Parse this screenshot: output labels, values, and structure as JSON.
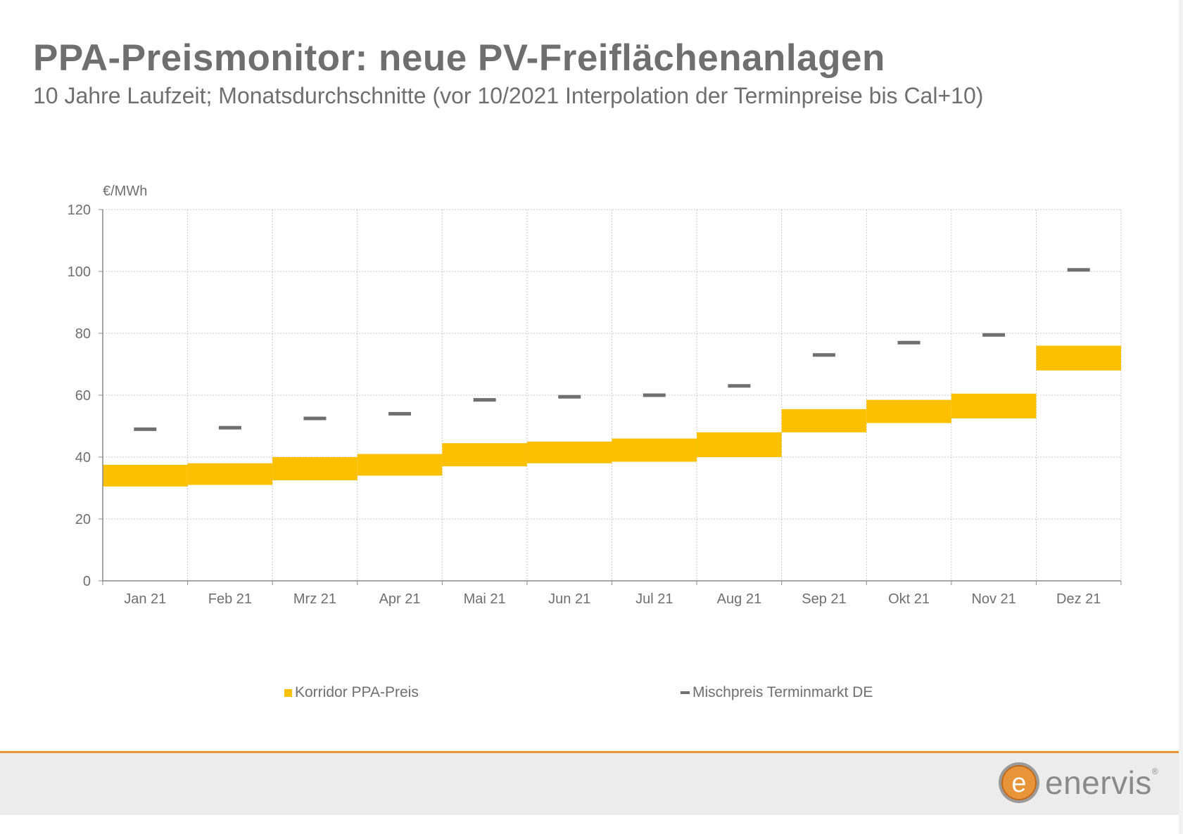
{
  "title": "PPA-Preismonitor: neue PV-Freiflächenanlagen",
  "subtitle": "10 Jahre Laufzeit; Monatsdurchschnitte (vor 10/2021 Interpolation der Terminpreise bis Cal+10)",
  "colors": {
    "corridor": "#fbc100",
    "marker": "#6f6f6f",
    "grid": "#c8c8c8",
    "text": "#6f6f6f",
    "footer_line": "#e8953a"
  },
  "logo": {
    "text": "enervis",
    "mark": "e",
    "reg": "®"
  },
  "chart_data": {
    "type": "bar",
    "ylabel": "€/MWh",
    "ylim": [
      0,
      120
    ],
    "yticks": [
      0,
      20,
      40,
      60,
      80,
      100,
      120
    ],
    "categories": [
      "Jan 21",
      "Feb 21",
      "Mrz 21",
      "Apr 21",
      "Mai 21",
      "Jun 21",
      "Jul 21",
      "Aug 21",
      "Sep 21",
      "Okt 21",
      "Nov 21",
      "Dez 21"
    ],
    "series": [
      {
        "name": "Korridor PPA-Preis",
        "kind": "range",
        "low": [
          30.5,
          31,
          32.5,
          34,
          37,
          38,
          38.5,
          40,
          48,
          51,
          52.5,
          68
        ],
        "high": [
          37.5,
          38,
          40,
          41,
          44.5,
          45,
          46,
          48,
          55.5,
          58.5,
          60.5,
          76
        ]
      },
      {
        "name": "Mischpreis Terminmarkt DE",
        "kind": "marker",
        "values": [
          49,
          49.5,
          52.5,
          54,
          58.5,
          59.5,
          60,
          63,
          73,
          77,
          79.5,
          100.5
        ]
      }
    ],
    "grid": true,
    "legend": "bottom"
  }
}
